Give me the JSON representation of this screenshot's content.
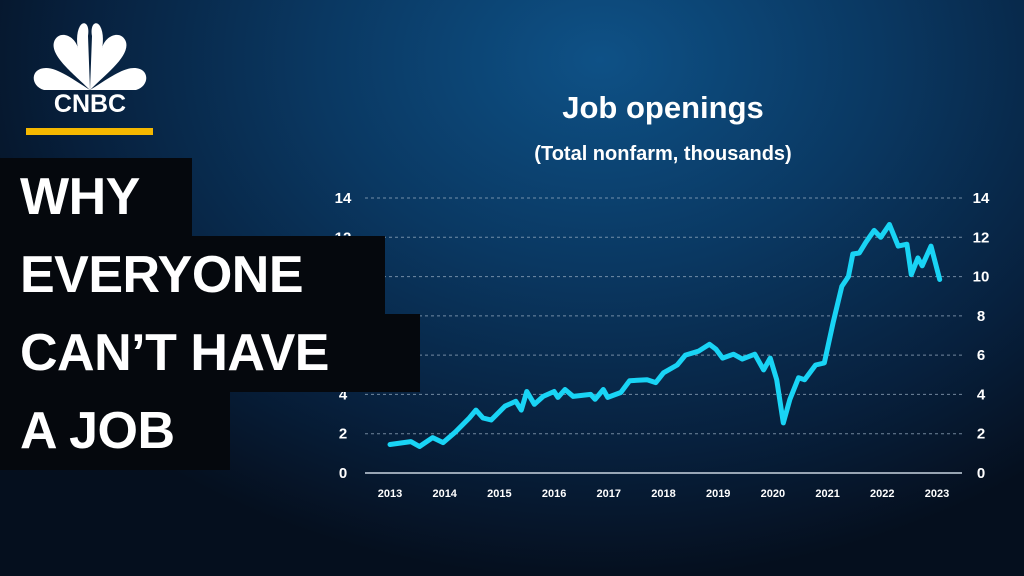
{
  "brand": {
    "logo_text": "CNBC",
    "accent": "#f5b800"
  },
  "headline": {
    "lines": [
      "WHY",
      "EVERYONE",
      "CAN’T HAVE",
      "A JOB"
    ]
  },
  "chart_data": {
    "type": "line",
    "title": "Job openings",
    "subtitle": "(Total nonfarm, thousands)",
    "xlim": [
      2013,
      2023
    ],
    "ylim": [
      0,
      14
    ],
    "x_ticks": [
      "2013",
      "2014",
      "2015",
      "2016",
      "2017",
      "2018",
      "2019",
      "2020",
      "2021",
      "2022",
      "2023"
    ],
    "y_ticks": [
      0,
      2,
      4,
      6,
      8,
      10,
      12,
      14
    ],
    "y_axis_both_sides": true,
    "grid": "horizontal dotted",
    "line_color": "#19d4f5",
    "x": [
      2013.0,
      2013.38,
      2013.54,
      2013.78,
      2013.97,
      2014.2,
      2014.45,
      2014.57,
      2014.7,
      2014.85,
      2015.1,
      2015.3,
      2015.4,
      2015.5,
      2015.64,
      2015.8,
      2016.0,
      2016.07,
      2016.2,
      2016.35,
      2016.67,
      2016.75,
      2016.9,
      2016.98,
      2017.22,
      2017.38,
      2017.7,
      2017.86,
      2018.0,
      2018.25,
      2018.4,
      2018.64,
      2018.84,
      2018.96,
      2019.08,
      2019.28,
      2019.44,
      2019.67,
      2019.83,
      2019.95,
      2020.07,
      2020.19,
      2020.31,
      2020.47,
      2020.58,
      2020.78,
      2020.94,
      2021.1,
      2021.26,
      2021.38,
      2021.46,
      2021.58,
      2021.7,
      2021.85,
      2021.97,
      2022.13,
      2022.29,
      2022.45,
      2022.53,
      2022.65,
      2022.73,
      2022.89,
      2023.05
    ],
    "y": [
      1.45,
      1.6,
      1.35,
      1.8,
      1.55,
      2.1,
      2.8,
      3.2,
      2.8,
      2.7,
      3.4,
      3.65,
      3.2,
      4.15,
      3.5,
      3.9,
      4.15,
      3.85,
      4.25,
      3.9,
      4.0,
      3.75,
      4.25,
      3.85,
      4.1,
      4.7,
      4.75,
      4.6,
      5.1,
      5.5,
      6.0,
      6.2,
      6.55,
      6.3,
      5.85,
      6.05,
      5.8,
      6.05,
      5.25,
      5.85,
      4.75,
      2.55,
      3.75,
      4.85,
      4.75,
      5.5,
      5.6,
      7.65,
      9.5,
      10.0,
      11.15,
      11.2,
      11.75,
      12.35,
      12.0,
      12.65,
      11.55,
      11.65,
      10.1,
      10.95,
      10.55,
      11.55,
      9.85
    ]
  }
}
